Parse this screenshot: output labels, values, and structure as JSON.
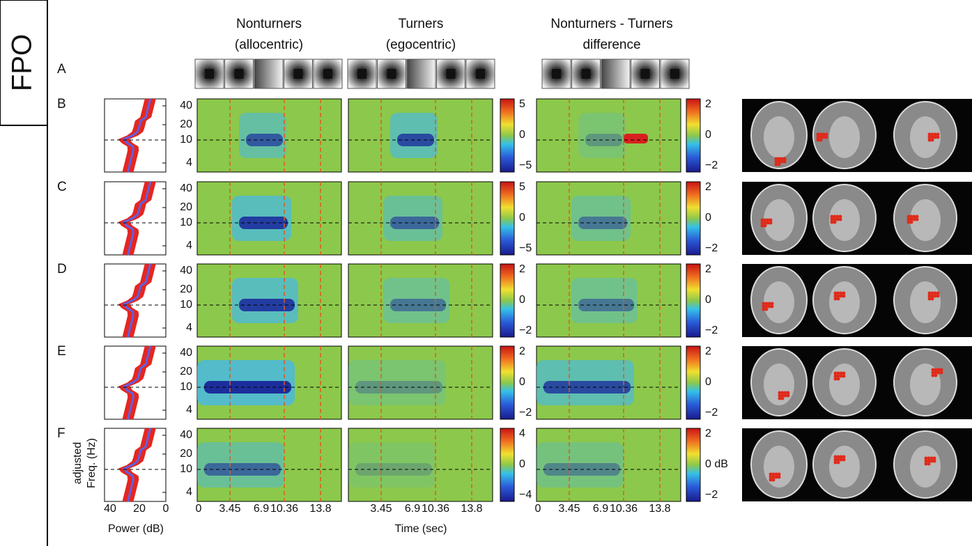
{
  "label_box": "FPO",
  "columns": [
    {
      "title_lines": [
        "Nonturners",
        "(allocentric)"
      ]
    },
    {
      "title_lines": [
        "Turners",
        "(egocentric)"
      ]
    },
    {
      "title_lines": [
        "Nonturners - Turners",
        "difference"
      ]
    }
  ],
  "rows": [
    {
      "letter": "A"
    },
    {
      "letter": "B",
      "colorbar_left": [
        "5",
        "0",
        "−5"
      ],
      "colorbar_right": [
        "2",
        "0",
        "−2"
      ]
    },
    {
      "letter": "C",
      "colorbar_left": [
        "5",
        "0",
        "−5"
      ],
      "colorbar_right": [
        "2",
        "0",
        "−2"
      ]
    },
    {
      "letter": "D",
      "colorbar_left": [
        "2",
        "0",
        "−2"
      ],
      "colorbar_right": [
        "2",
        "0",
        "−2"
      ]
    },
    {
      "letter": "E",
      "colorbar_left": [
        "2",
        "0",
        "−2"
      ],
      "colorbar_right": [
        "2",
        "0",
        "−2"
      ]
    },
    {
      "letter": "F",
      "colorbar_left": [
        "4",
        "0",
        "−4"
      ],
      "colorbar_right": [
        "2",
        "0 dB",
        "−2"
      ]
    }
  ],
  "freq_ticks": [
    "40",
    "20",
    "10",
    "4"
  ],
  "freq_label": [
    "adjusted",
    "Freq. (Hz)"
  ],
  "power_ticks": [
    "40",
    "20",
    "0"
  ],
  "power_label": "Power (dB)",
  "time_ticks": [
    "0",
    "3.45",
    "6.9",
    "10.36",
    "13.8"
  ],
  "time_label": "Time (sec)"
}
